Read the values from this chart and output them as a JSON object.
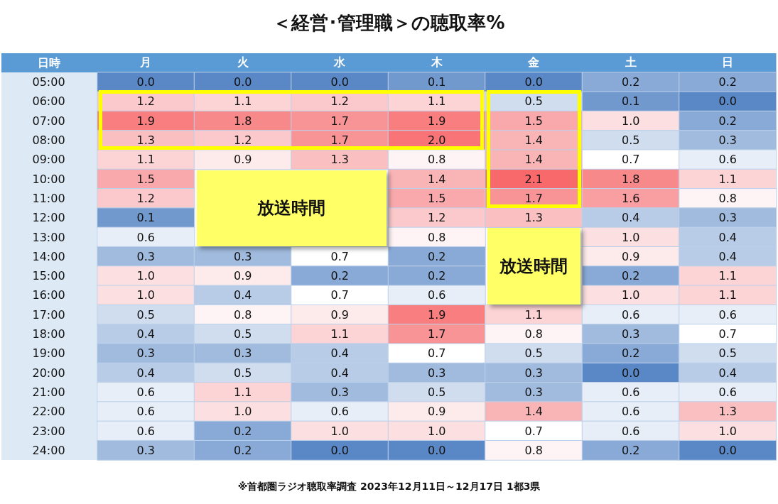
{
  "chart_data": {
    "type": "heatmap",
    "title": "＜経営･管理職＞の聴取率%",
    "ylabel": "日時",
    "categories": [
      "月",
      "火",
      "水",
      "木",
      "金",
      "土",
      "日"
    ],
    "y_categories": [
      "05:00",
      "06:00",
      "07:00",
      "08:00",
      "09:00",
      "10:00",
      "11:00",
      "12:00",
      "13:00",
      "14:00",
      "15:00",
      "16:00",
      "17:00",
      "18:00",
      "19:00",
      "20:00",
      "21:00",
      "22:00",
      "23:00",
      "24:00"
    ],
    "cells": [
      [
        0.0,
        0.0,
        0.0,
        0.1,
        0.0,
        0.2,
        0.2
      ],
      [
        1.2,
        1.1,
        1.2,
        1.1,
        0.5,
        0.1,
        0.0
      ],
      [
        1.9,
        1.8,
        1.7,
        1.9,
        1.5,
        1.0,
        0.2
      ],
      [
        1.3,
        1.2,
        1.7,
        2.0,
        1.4,
        0.5,
        0.3
      ],
      [
        1.1,
        0.9,
        1.3,
        0.8,
        1.4,
        0.7,
        0.6
      ],
      [
        1.5,
        null,
        null,
        1.4,
        2.1,
        1.8,
        1.1
      ],
      [
        1.2,
        null,
        null,
        1.5,
        1.7,
        1.6,
        0.8
      ],
      [
        0.1,
        null,
        null,
        1.2,
        1.3,
        0.4,
        0.3
      ],
      [
        0.6,
        null,
        null,
        0.8,
        null,
        1.0,
        0.4
      ],
      [
        0.3,
        0.3,
        0.7,
        0.2,
        null,
        0.9,
        0.4
      ],
      [
        1.0,
        0.9,
        0.2,
        0.2,
        null,
        0.2,
        1.1
      ],
      [
        1.0,
        0.4,
        0.7,
        0.6,
        null,
        1.0,
        1.1
      ],
      [
        0.5,
        0.8,
        0.9,
        1.9,
        1.1,
        0.6,
        0.6
      ],
      [
        0.4,
        0.5,
        1.1,
        1.7,
        0.8,
        0.3,
        0.7
      ],
      [
        0.3,
        0.3,
        0.4,
        0.7,
        0.5,
        0.2,
        0.5
      ],
      [
        0.4,
        0.5,
        0.4,
        0.3,
        0.3,
        0.0,
        0.4
      ],
      [
        0.6,
        1.1,
        0.3,
        0.5,
        0.3,
        0.6,
        0.6
      ],
      [
        0.6,
        1.0,
        0.6,
        0.9,
        1.4,
        0.6,
        1.3
      ],
      [
        0.6,
        0.2,
        1.0,
        1.0,
        0.7,
        0.6,
        1.0
      ],
      [
        0.3,
        0.2,
        0.0,
        0.0,
        0.8,
        0.2,
        0.0
      ]
    ],
    "cell_labels": [
      [
        "0.0",
        "0.0",
        "0.0",
        "0.1",
        "0.0",
        "0.2",
        "0.2"
      ],
      [
        "1.2",
        "1.1",
        "1.2",
        "1.1",
        "0.5",
        "0.1",
        "0.0"
      ],
      [
        "1.9",
        "1.8",
        "1.7",
        "1.9",
        "1.5",
        "1.0",
        "0.2"
      ],
      [
        "1.3",
        "1.2",
        "1.7",
        "2.0",
        "1.4",
        "0.5",
        "0.3"
      ],
      [
        "1.1",
        "0.9",
        "1.3",
        "0.8",
        "1.4",
        "0.7",
        "0.6"
      ],
      [
        "1.5",
        null,
        null,
        "1.4",
        "2.1",
        "1.8",
        "1.1"
      ],
      [
        "1.2",
        null,
        null,
        "1.5",
        "1.7",
        "1.6",
        "0.8"
      ],
      [
        "0.1",
        null,
        null,
        "1.2",
        "1.3",
        "0.4",
        "0.3"
      ],
      [
        "0.6",
        null,
        null,
        "0.8",
        null,
        "1.0",
        "0.4"
      ],
      [
        "0.3",
        "0.3",
        "0.7",
        "0.2",
        null,
        "0.9",
        "0.4"
      ],
      [
        "1.0",
        "0.9",
        "0.2",
        "0.2",
        null,
        "0.2",
        "1.1"
      ],
      [
        "1.0",
        "0.4",
        "0.7",
        "0.6",
        null,
        "1.0",
        "1.1"
      ],
      [
        "0.5",
        "0.8",
        "0.9",
        "1.9",
        "1.1",
        "0.6",
        "0.6"
      ],
      [
        "0.4",
        "0.5",
        "1.1",
        "1.7",
        "0.8",
        "0.3",
        "0.7"
      ],
      [
        "0.3",
        "0.3",
        "0.4",
        "0.7",
        "0.5",
        "0.2",
        "0.5"
      ],
      [
        "0.4",
        "0.5",
        "0.4",
        "0.3",
        "0.3",
        "0.0",
        "0.4"
      ],
      [
        "0.6",
        "1.1",
        "0.3",
        "0.5",
        "0.3",
        "0.6",
        "0.6"
      ],
      [
        "0.6",
        "1.0",
        "0.6",
        "0.9",
        "1.4",
        "0.6",
        "1.3"
      ],
      [
        "0.6",
        "0.2",
        "1.0",
        "1.0",
        "0.7",
        "0.6",
        "1.0"
      ],
      [
        "0.3",
        "0.2",
        "0.0",
        "0.0",
        "0.8",
        "0.2",
        "0.0"
      ]
    ],
    "annotations": [
      "放送時間",
      "放送時間",
      "※首都圏ラジオ聴取率調査 2023年12月11日～12月17日 1都3県"
    ]
  }
}
